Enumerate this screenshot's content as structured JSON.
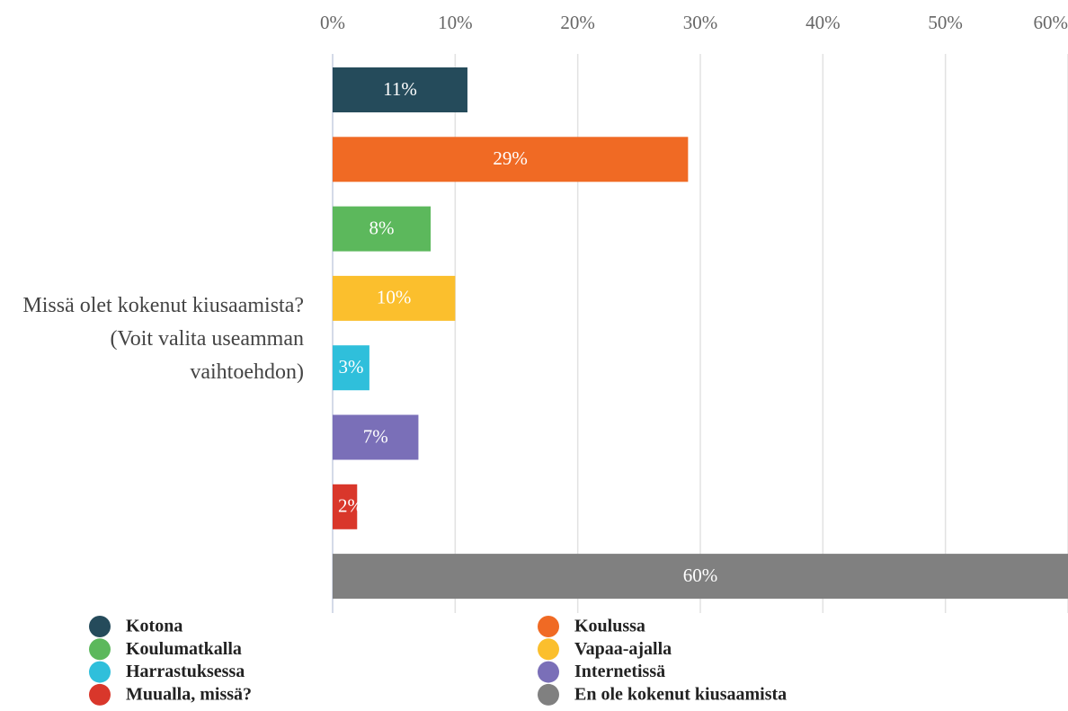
{
  "chart_data": {
    "type": "bar",
    "orientation": "horizontal",
    "categories": [
      "Missä olet kokenut kiusaamista? (Voit valita useamman vaihtoehdon)"
    ],
    "series": [
      {
        "name": "Kotona",
        "color": "#254b5b",
        "values": [
          11
        ],
        "value_labels": [
          "11%"
        ]
      },
      {
        "name": "Koulussa",
        "color": "#f06a24",
        "values": [
          29
        ],
        "value_labels": [
          "29%"
        ]
      },
      {
        "name": "Koulumatkalla",
        "color": "#5cb85c",
        "values": [
          8
        ],
        "value_labels": [
          "8%"
        ]
      },
      {
        "name": "Vapaa-ajalla",
        "color": "#fbbf2d",
        "values": [
          10
        ],
        "value_labels": [
          "10%"
        ]
      },
      {
        "name": "Harrastuksessa",
        "color": "#2fbfdb",
        "values": [
          3
        ],
        "value_labels": [
          "3%"
        ]
      },
      {
        "name": "Internetissä",
        "color": "#7a6fb8",
        "values": [
          7
        ],
        "value_labels": [
          "7%"
        ]
      },
      {
        "name": "Muualla, missä?",
        "color": "#d9372b",
        "values": [
          2
        ],
        "value_labels": [
          "2%"
        ]
      },
      {
        "name": "En ole kokenut kiusaamista",
        "color": "#808080",
        "values": [
          60
        ],
        "value_labels": [
          "60%"
        ]
      }
    ],
    "xlim": [
      0,
      60
    ],
    "xticks": [
      {
        "value": 0,
        "label": "0%"
      },
      {
        "value": 10,
        "label": "10%"
      },
      {
        "value": 20,
        "label": "20%"
      },
      {
        "value": 30,
        "label": "30%"
      },
      {
        "value": 40,
        "label": "40%"
      },
      {
        "value": 50,
        "label": "50%"
      },
      {
        "value": 60,
        "label": "60%"
      }
    ],
    "grid": true,
    "legend": "bottom"
  }
}
